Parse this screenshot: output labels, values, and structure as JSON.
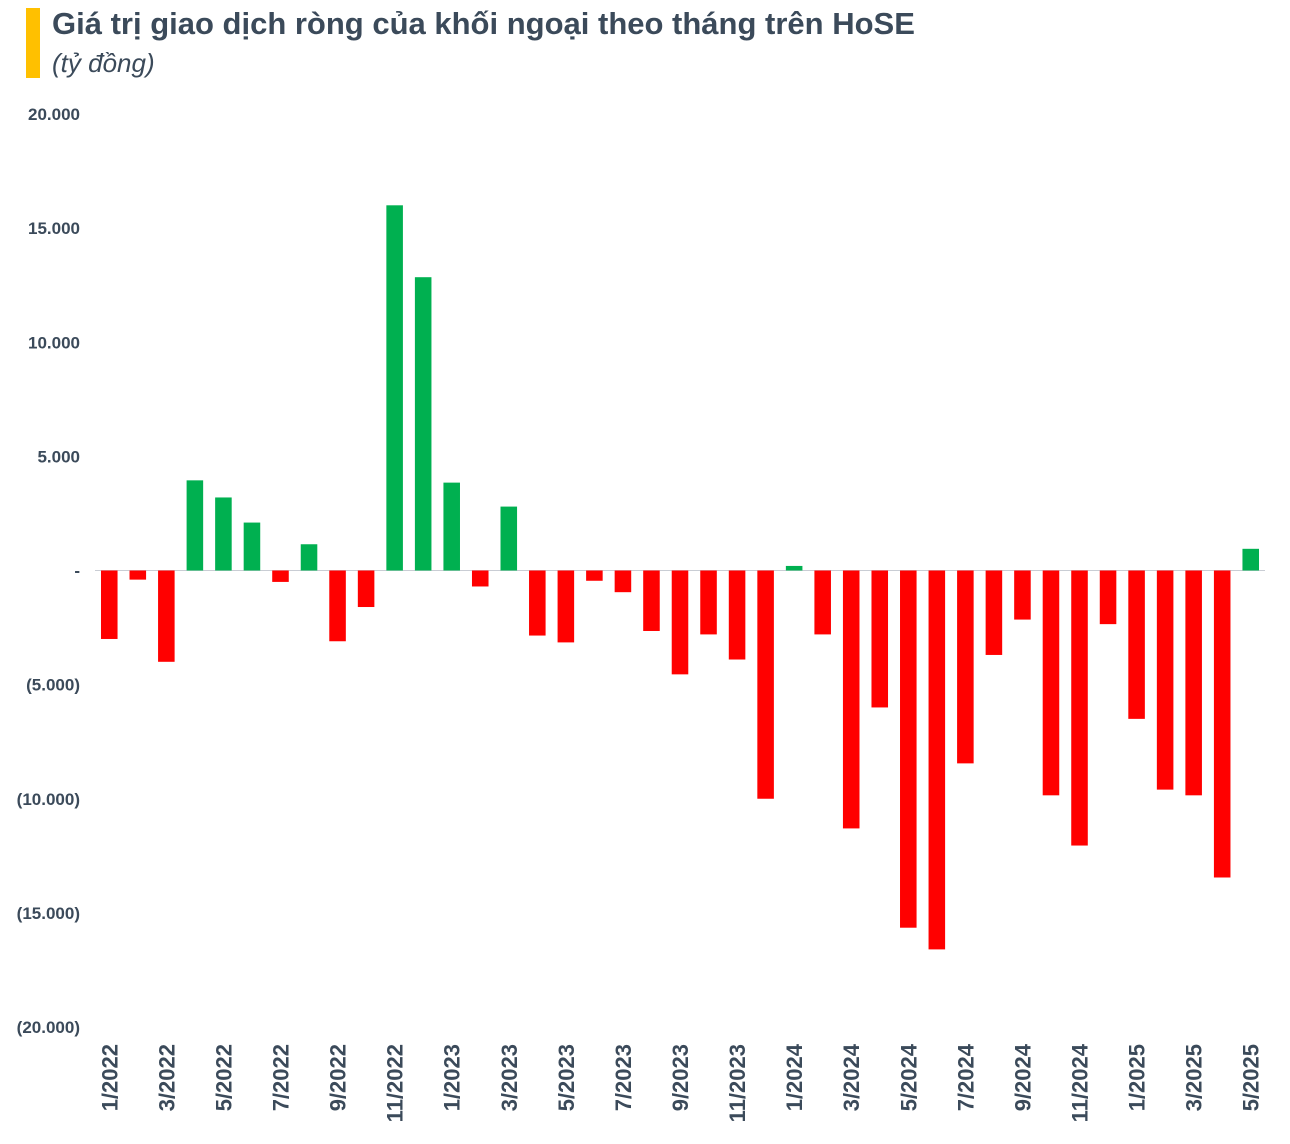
{
  "colors": {
    "positive": "#00b050",
    "negative": "#ff0000",
    "accent": "#ffc000",
    "text": "#3b4a5a",
    "zero_line": "#c9cdd4"
  },
  "chart_data": {
    "type": "bar",
    "title": "Giá trị giao dịch ròng của khối ngoại theo tháng trên HoSE",
    "subtitle": "(tỷ đồng)",
    "xlabel": "",
    "ylabel": "",
    "ylim": [
      -20000,
      20000
    ],
    "yticks": [
      20000,
      15000,
      10000,
      5000,
      0,
      -5000,
      -10000,
      -15000,
      -20000
    ],
    "ytick_labels": [
      "20.000",
      "15.000",
      "10.000",
      "5.000",
      "-",
      "(5.000)",
      "(10.000)",
      "(15.000)",
      "(20.000)"
    ],
    "grid": false,
    "categories": [
      "1/2022",
      "2/2022",
      "3/2022",
      "4/2022",
      "5/2022",
      "6/2022",
      "7/2022",
      "8/2022",
      "9/2022",
      "10/2022",
      "11/2022",
      "12/2022",
      "1/2023",
      "2/2023",
      "3/2023",
      "4/2023",
      "5/2023",
      "6/2023",
      "7/2023",
      "8/2023",
      "9/2023",
      "10/2023",
      "11/2023",
      "12/2023",
      "1/2024",
      "2/2024",
      "3/2024",
      "4/2024",
      "5/2024",
      "6/2024",
      "7/2024",
      "8/2024",
      "9/2024",
      "10/2024",
      "11/2024",
      "12/2024",
      "1/2025",
      "2/2025",
      "3/2025",
      "4/2025",
      "5/2025"
    ],
    "values": [
      -3000,
      -400,
      -4000,
      3950,
      3200,
      2100,
      -500,
      1150,
      -3100,
      -1600,
      16000,
      12850,
      3850,
      -700,
      2800,
      -2850,
      -3150,
      -450,
      -950,
      -2650,
      -4550,
      -2800,
      -3900,
      -10000,
      200,
      -2800,
      -11300,
      -6000,
      -15650,
      -16600,
      -8450,
      -3700,
      -2150,
      -9850,
      -12050,
      -2350,
      -6500,
      -9600,
      -9850,
      -13450,
      950
    ],
    "xtick_labels": [
      "1/2022",
      "3/2022",
      "5/2022",
      "7/2022",
      "9/2022",
      "11/2022",
      "1/2023",
      "3/2023",
      "5/2023",
      "7/2023",
      "9/2023",
      "11/2023",
      "1/2024",
      "3/2024",
      "5/2024",
      "7/2024",
      "9/2024",
      "11/2024",
      "1/2025",
      "3/2025",
      "5/2025"
    ]
  }
}
